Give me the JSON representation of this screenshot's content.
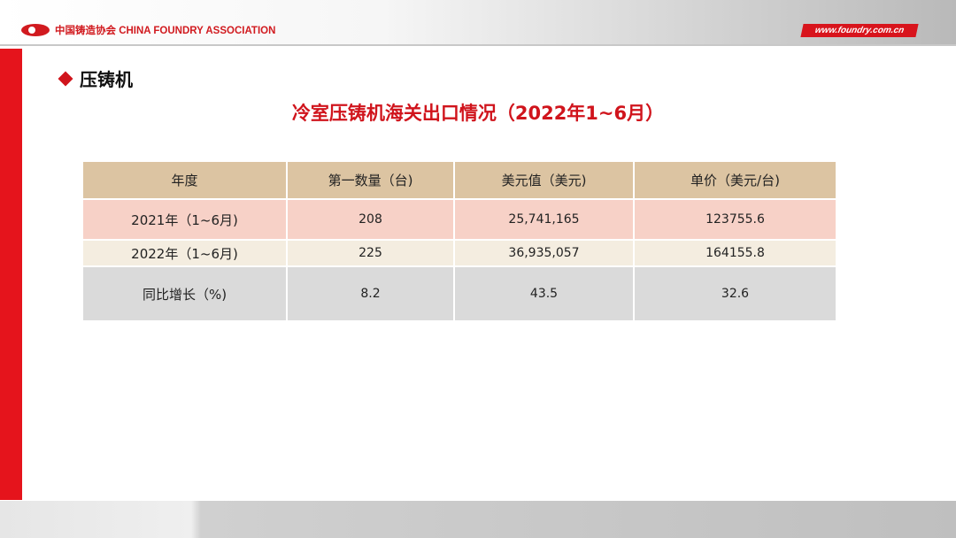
{
  "header": {
    "logo_text": "中国铸造协会 CHINA FOUNDRY ASSOCIATION",
    "website": "www.foundry.com.cn"
  },
  "section_title": "压铸机",
  "table_title": "冷室压铸机海关出口情况（2022年1~6月）",
  "table": {
    "headers": [
      "年度",
      "第一数量（台)",
      "美元值（美元)",
      "单价（美元/台)"
    ],
    "rows": [
      [
        "2021年（1~6月)",
        "208",
        "25,741,165",
        "123755.6"
      ],
      [
        "2022年（1~6月)",
        "225",
        "36,935,057",
        "164155.8"
      ],
      [
        "同比增长（%)",
        "8.2",
        "43.5",
        "32.6"
      ]
    ]
  },
  "colors": {
    "accent": "#e5141c",
    "header_row": "#dcc4a2",
    "row_2021": "#f7d1c7",
    "row_2022": "#f4ede0",
    "row_growth": "#dadada"
  }
}
